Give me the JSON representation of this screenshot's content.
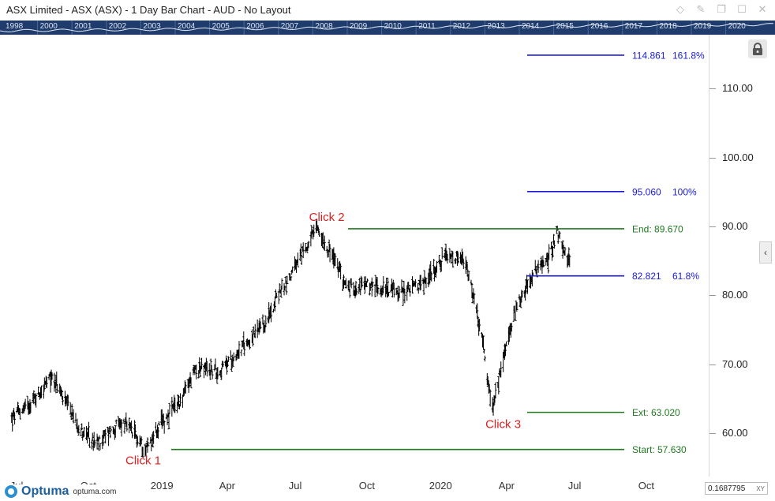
{
  "window": {
    "title": "ASX Limited - ASX (ASX) - 1 Day Bar Chart - AUD - No Layout",
    "icons": [
      "diamond-icon",
      "pin-icon",
      "restore-icon",
      "maximize-icon",
      "close-icon"
    ]
  },
  "overview_years": [
    "1998",
    "2000",
    "2001",
    "2002",
    "2003",
    "2004",
    "2005",
    "2006",
    "2007",
    "2008",
    "2009",
    "2010",
    "2011",
    "2012",
    "2013",
    "2014",
    "2015",
    "2016",
    "2017",
    "2018",
    "2019",
    "2020"
  ],
  "chart_data": {
    "type": "bar",
    "symbol": "ASX",
    "period": "1 Day",
    "currency": "AUD",
    "ylim": [
      54.5,
      117
    ],
    "yticks": [
      "60.00",
      "70.00",
      "80.00",
      "90.00",
      "100.00",
      "110.00"
    ],
    "xticks": [
      "Jul",
      "Oct",
      "2019",
      "Apr",
      "Jul",
      "Oct",
      "2020",
      "Apr",
      "Jul",
      "Oct"
    ],
    "price_path": [
      {
        "date": "2018-07-01",
        "close": 62.0
      },
      {
        "date": "2018-08-01",
        "close": 65.0
      },
      {
        "date": "2018-08-25",
        "close": 68.3
      },
      {
        "date": "2018-09-10",
        "close": 64.5
      },
      {
        "date": "2018-10-01",
        "close": 60.5
      },
      {
        "date": "2018-10-20",
        "close": 58.2
      },
      {
        "date": "2018-11-05",
        "close": 60.0
      },
      {
        "date": "2018-11-25",
        "close": 61.5
      },
      {
        "date": "2018-12-10",
        "close": 59.8
      },
      {
        "date": "2018-12-24",
        "close": 57.63
      },
      {
        "date": "2019-01-15",
        "close": 61.5
      },
      {
        "date": "2019-02-10",
        "close": 65.0
      },
      {
        "date": "2019-03-01",
        "close": 69.5
      },
      {
        "date": "2019-04-01",
        "close": 69.0
      },
      {
        "date": "2019-05-01",
        "close": 72.5
      },
      {
        "date": "2019-06-01",
        "close": 76.0
      },
      {
        "date": "2019-06-15",
        "close": 80.0
      },
      {
        "date": "2019-07-01",
        "close": 82.5
      },
      {
        "date": "2019-07-20",
        "close": 86.5
      },
      {
        "date": "2019-08-06",
        "close": 89.67
      },
      {
        "date": "2019-08-25",
        "close": 86.0
      },
      {
        "date": "2019-09-15",
        "close": 81.0
      },
      {
        "date": "2019-10-10",
        "close": 81.5
      },
      {
        "date": "2019-11-05",
        "close": 81.0
      },
      {
        "date": "2019-11-25",
        "close": 80.5
      },
      {
        "date": "2019-12-20",
        "close": 81.5
      },
      {
        "date": "2020-01-20",
        "close": 85.5
      },
      {
        "date": "2020-02-15",
        "close": 85.0
      },
      {
        "date": "2020-02-28",
        "close": 79.5
      },
      {
        "date": "2020-03-10",
        "close": 73.0
      },
      {
        "date": "2020-03-23",
        "close": 63.02
      },
      {
        "date": "2020-04-05",
        "close": 70.5
      },
      {
        "date": "2020-04-25",
        "close": 79.0
      },
      {
        "date": "2020-05-15",
        "close": 83.0
      },
      {
        "date": "2020-06-05",
        "close": 85.5
      },
      {
        "date": "2020-06-15",
        "close": 89.5
      },
      {
        "date": "2020-06-28",
        "close": 85.0
      },
      {
        "date": "2020-07-03",
        "close": 85.5
      }
    ],
    "levels": [
      {
        "value": 114.861,
        "label": "114.861",
        "pct": "161.8%",
        "color": "#1a1adb"
      },
      {
        "value": 95.06,
        "label": "95.060",
        "pct": "100%",
        "color": "#1a1adb"
      },
      {
        "value": 89.67,
        "label": "End: 89.670",
        "pct": "",
        "color": "#1f7a1f"
      },
      {
        "value": 82.821,
        "label": "82.821",
        "pct": "61.8%",
        "color": "#1a1adb"
      },
      {
        "value": 63.02,
        "label": "Ext: 63.020",
        "pct": "",
        "color": "#1f7a1f"
      },
      {
        "value": 57.63,
        "label": "Start: 57.630",
        "pct": "",
        "color": "#1f7a1f"
      }
    ],
    "annotations": [
      {
        "text": "Click 1",
        "date": "2018-12-24",
        "value": 57.63
      },
      {
        "text": "Click 2",
        "date": "2019-08-06",
        "value": 89.67
      },
      {
        "text": "Click 3",
        "date": "2020-03-23",
        "value": 63.02
      }
    ]
  },
  "branding": {
    "name": "Optuma",
    "url": "optuma.com"
  },
  "coord_readout": {
    "value": "0.1687795",
    "mode": "XY"
  }
}
